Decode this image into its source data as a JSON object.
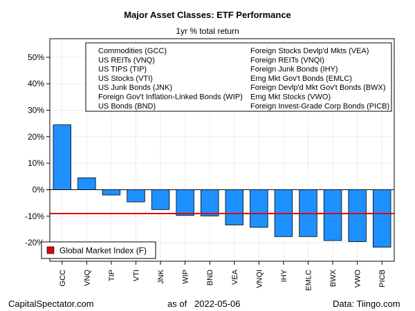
{
  "chart_data": {
    "type": "bar",
    "title": "Major Asset Classes: ETF Performance",
    "subtitle": "1yr % total return",
    "categories": [
      "GCC",
      "VNQ",
      "TIP",
      "VTI",
      "JNK",
      "WIP",
      "BND",
      "VEA",
      "VNQI",
      "IHY",
      "EMLC",
      "BWX",
      "VWO",
      "PICB"
    ],
    "values": [
      24.5,
      4.5,
      -2.0,
      -4.6,
      -7.5,
      -9.7,
      -9.9,
      -13.3,
      -14.2,
      -17.7,
      -17.7,
      -19.2,
      -19.6,
      -21.7
    ],
    "ylim": [
      -27,
      57
    ],
    "yticks": [
      -20,
      -10,
      0,
      10,
      20,
      30,
      40,
      50
    ],
    "ytick_labels": [
      "-20%",
      "-10%",
      "0%",
      "10%",
      "20%",
      "30%",
      "40%",
      "50%"
    ],
    "bar_color": "#1E90FF",
    "reference_line": {
      "name": "Global Market Index (F)",
      "value": -9.0,
      "color": "#DD0000"
    },
    "legend_left": [
      "Commodities (GCC)",
      "US REITs (VNQ)",
      "US TIPS (TIP)",
      "US Stocks (VTI)",
      "US Junk Bonds (JNK)",
      "Foreign Gov't Inflation-Linked Bonds (WIP)",
      "US Bonds (BND)"
    ],
    "legend_right": [
      "Foreign Stocks Devlp'd Mkts (VEA)",
      "Foreign REITs (VNQI)",
      "Foreign Junk Bonds (IHY)",
      "Emg Mkt Gov't Bonds (EMLC)",
      "Foreign Devlp'd Mkt Gov't Bonds (BWX)",
      "Emg Mkt Stocks (VWO)",
      "Foreign Invest-Grade Corp Bonds (PICB)"
    ],
    "grid": true
  },
  "footer": {
    "left": "CapitalSpectator.com",
    "center": "as of   2022-05-06",
    "right": "Data: Tiingo.com"
  }
}
